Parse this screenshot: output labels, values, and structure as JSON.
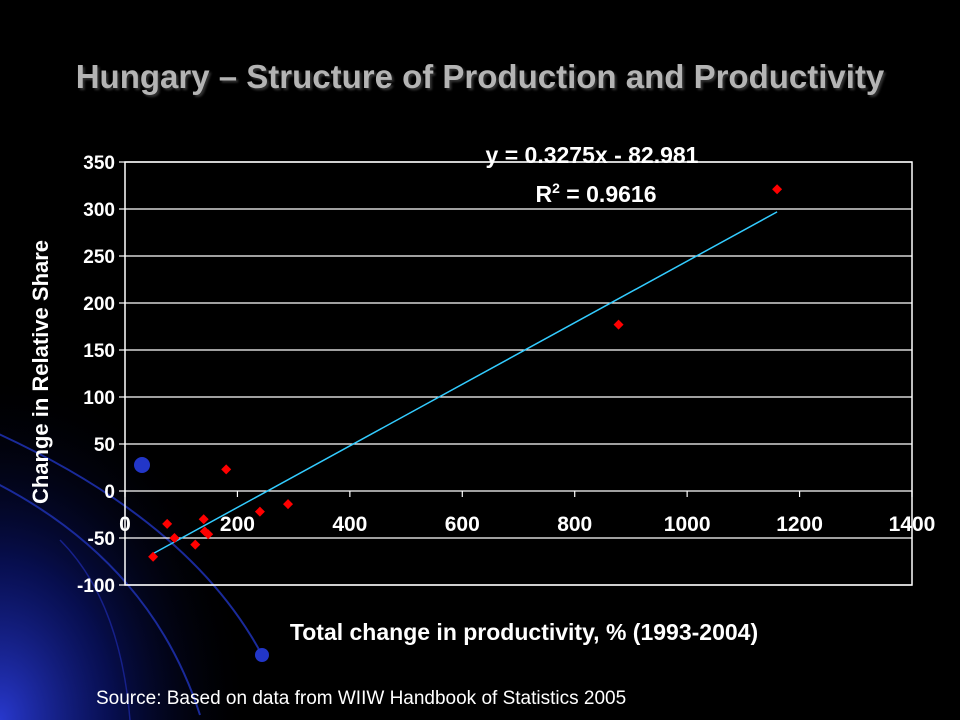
{
  "slide": {
    "title": "Hungary – Structure of Production and Productivity",
    "source": "Source: Based on data from WIIW Handbook of Statistics 2005"
  },
  "colors": {
    "background": "#000000",
    "grid": "#ffffff",
    "marker": "#ff0000",
    "trendline": "#33ccff",
    "text": "#ffffff",
    "title": "#b4b4b4"
  },
  "chart_data": {
    "type": "scatter",
    "title": "",
    "xlabel": "Total change in productivity, % (1993-2004)",
    "ylabel": "Change in Relative Share",
    "xlim": [
      0,
      1400
    ],
    "ylim": [
      -100,
      350
    ],
    "x_ticks": [
      "0",
      "200",
      "400",
      "600",
      "800",
      "1000",
      "1200",
      "1400"
    ],
    "y_ticks": [
      "350",
      "300",
      "250",
      "200",
      "150",
      "100",
      "50",
      "0",
      "-50",
      "-100"
    ],
    "grid": "horizontal",
    "series": [
      {
        "marker": "diamond",
        "points": [
          [
            50,
            -70
          ],
          [
            75,
            -35
          ],
          [
            88,
            -50
          ],
          [
            125,
            -57
          ],
          [
            140,
            -30
          ],
          [
            142,
            -43
          ],
          [
            148,
            -46
          ],
          [
            180,
            23
          ],
          [
            240,
            -22
          ],
          [
            290,
            -14
          ],
          [
            878,
            177
          ],
          [
            1160,
            321
          ]
        ]
      }
    ],
    "trendline": {
      "type": "linear",
      "slope": 0.3275,
      "intercept": -82.981,
      "x_range": [
        50,
        1160
      ],
      "equation": "y = 0.3275x - 82.981",
      "r2_prefix": "R",
      "r2_exp": "2",
      "r2_value": " = 0.9616"
    }
  }
}
